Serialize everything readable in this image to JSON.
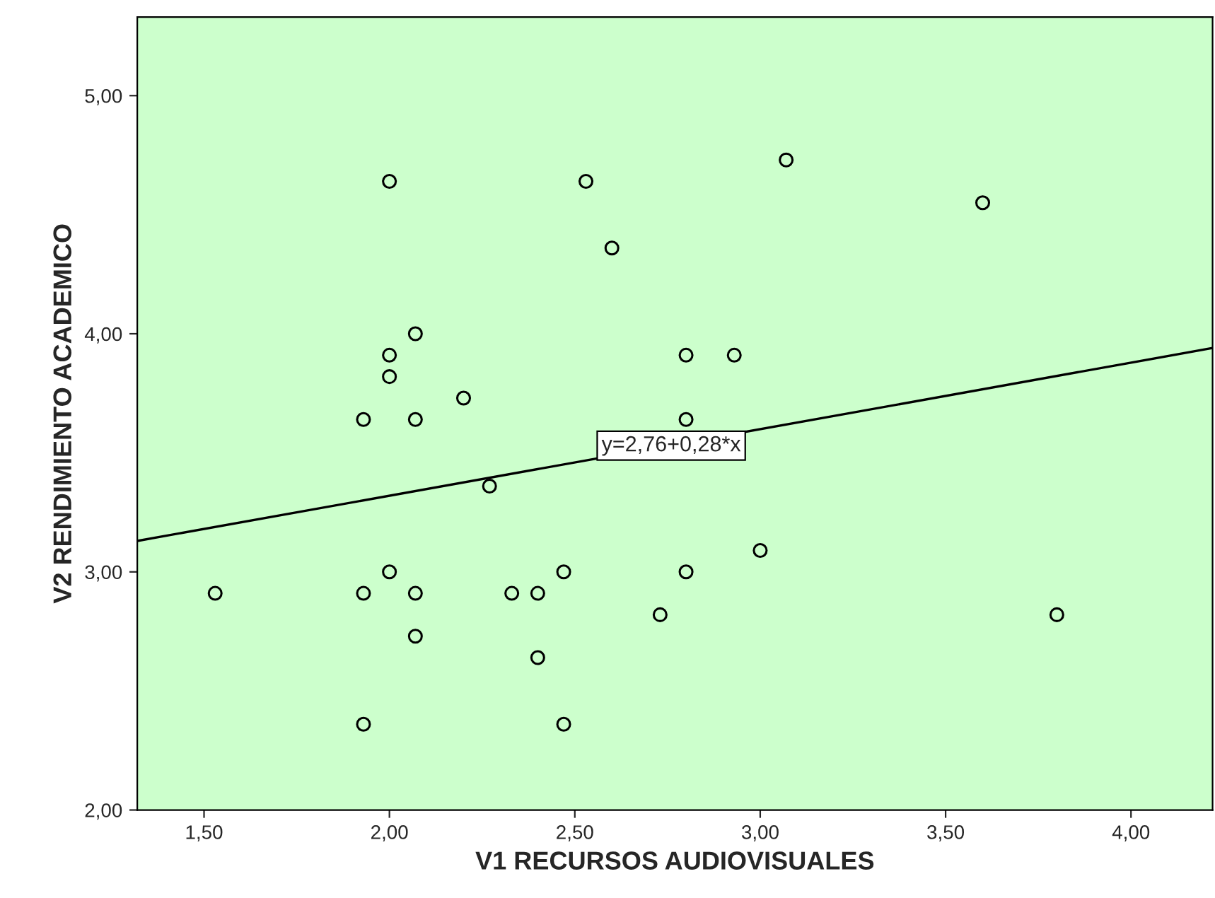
{
  "chart_data": {
    "type": "scatter",
    "xlabel": "V1 RECURSOS AUDIOVISUALES",
    "ylabel": "V2 RENDIMIENTO ACADEMICO",
    "grid": false,
    "legend": false,
    "xlim": [
      1.32,
      4.22
    ],
    "ylim": [
      2.0,
      5.33
    ],
    "xticks": [
      {
        "value": 1.5,
        "label": "1,50"
      },
      {
        "value": 2.0,
        "label": "2,00"
      },
      {
        "value": 2.5,
        "label": "2,50"
      },
      {
        "value": 3.0,
        "label": "3,00"
      },
      {
        "value": 3.5,
        "label": "3,50"
      },
      {
        "value": 4.0,
        "label": "4,00"
      }
    ],
    "yticks": [
      {
        "value": 2.0,
        "label": "2,00"
      },
      {
        "value": 3.0,
        "label": "3,00"
      },
      {
        "value": 4.0,
        "label": "4,00"
      },
      {
        "value": 5.0,
        "label": "5,00"
      }
    ],
    "series": [
      {
        "marker": "circle",
        "color": "#000000",
        "x": [
          1.53,
          1.93,
          1.93,
          1.93,
          2.0,
          2.0,
          2.0,
          2.0,
          2.07,
          2.07,
          2.07,
          2.07,
          2.2,
          2.27,
          2.33,
          2.4,
          2.4,
          2.47,
          2.47,
          2.53,
          2.6,
          2.73,
          2.8,
          2.8,
          2.8,
          2.93,
          3.0,
          3.07,
          3.6,
          3.8
        ],
        "values": [
          2.91,
          2.91,
          3.64,
          2.36,
          4.64,
          3.91,
          3.82,
          3.0,
          4.0,
          3.64,
          2.91,
          2.73,
          3.73,
          3.36,
          2.91,
          2.91,
          2.64,
          3.0,
          2.36,
          4.64,
          4.36,
          2.82,
          3.91,
          3.64,
          3.0,
          3.91,
          3.09,
          4.73,
          4.55,
          2.82
        ]
      },
      {
        "type": "line",
        "color": "#000000",
        "x": [
          1.32,
          4.22
        ],
        "values": [
          3.13,
          3.94
        ]
      }
    ],
    "annotations": [
      {
        "text": "y=2,76+0,28*x",
        "x": 2.76,
        "y": 3.53
      }
    ]
  }
}
